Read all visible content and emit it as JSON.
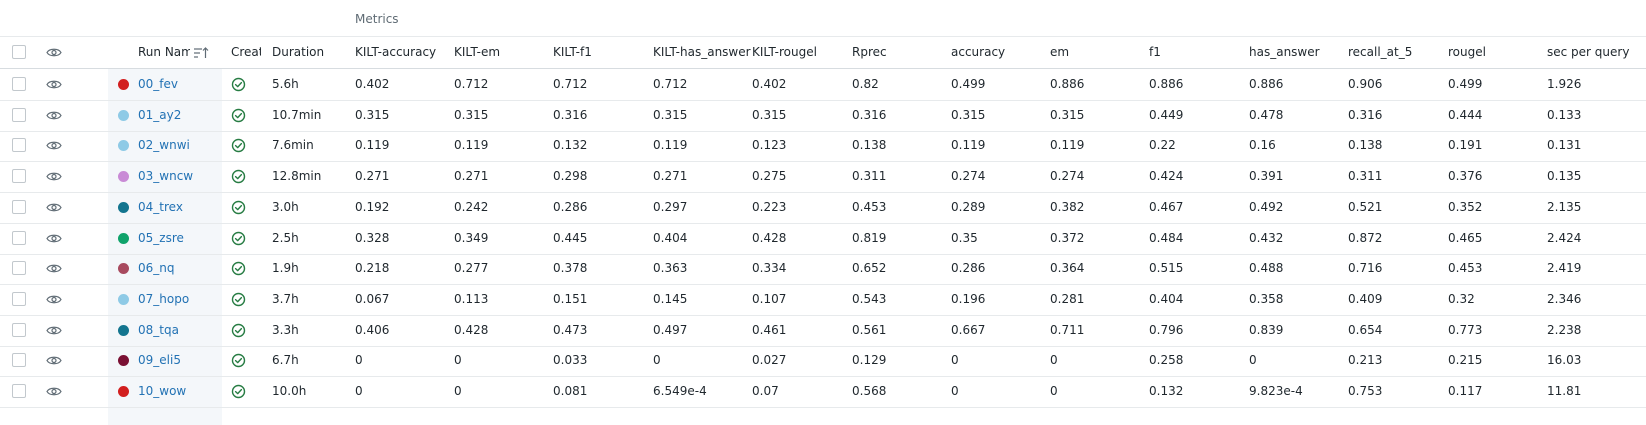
{
  "group_header": {
    "metrics_label": "Metrics"
  },
  "columns": {
    "run_name": "Run Name",
    "created": "Creat",
    "duration": "Duration",
    "metrics": [
      "KILT-accuracy",
      "KILT-em",
      "KILT-f1",
      "KILT-has_answer",
      "KILT-rougel",
      "Rprec",
      "accuracy",
      "em",
      "f1",
      "has_answer",
      "recall_at_5",
      "rougel",
      "sec per query"
    ]
  },
  "icons": {
    "visibility": "eye-icon",
    "status": "check-circle-icon",
    "sort": "sort-ascending-icon"
  },
  "colors": {
    "link": "#2272b4",
    "success": "#277c43"
  },
  "rows": [
    {
      "name": "00_fev",
      "color": "#d21f1f",
      "duration": "5.6h",
      "metrics": [
        "0.402",
        "0.712",
        "0.712",
        "0.712",
        "0.402",
        "0.82",
        "0.499",
        "0.886",
        "0.886",
        "0.886",
        "0.906",
        "0.499",
        "1.926"
      ]
    },
    {
      "name": "01_ay2",
      "color": "#8ecae6",
      "duration": "10.7min",
      "metrics": [
        "0.315",
        "0.315",
        "0.316",
        "0.315",
        "0.315",
        "0.316",
        "0.315",
        "0.315",
        "0.449",
        "0.478",
        "0.316",
        "0.444",
        "0.133"
      ]
    },
    {
      "name": "02_wnwi",
      "color": "#8ecae6",
      "duration": "7.6min",
      "metrics": [
        "0.119",
        "0.119",
        "0.132",
        "0.119",
        "0.123",
        "0.138",
        "0.119",
        "0.119",
        "0.22",
        "0.16",
        "0.138",
        "0.191",
        "0.131"
      ]
    },
    {
      "name": "03_wncw",
      "color": "#c98bd6",
      "duration": "12.8min",
      "metrics": [
        "0.271",
        "0.271",
        "0.298",
        "0.271",
        "0.275",
        "0.311",
        "0.274",
        "0.274",
        "0.424",
        "0.391",
        "0.311",
        "0.376",
        "0.135"
      ]
    },
    {
      "name": "04_trex",
      "color": "#13758f",
      "duration": "3.0h",
      "metrics": [
        "0.192",
        "0.242",
        "0.286",
        "0.297",
        "0.223",
        "0.453",
        "0.289",
        "0.382",
        "0.467",
        "0.492",
        "0.521",
        "0.352",
        "2.135"
      ]
    },
    {
      "name": "05_zsre",
      "color": "#0fa36b",
      "duration": "2.5h",
      "metrics": [
        "0.328",
        "0.349",
        "0.445",
        "0.404",
        "0.428",
        "0.819",
        "0.35",
        "0.372",
        "0.484",
        "0.432",
        "0.872",
        "0.465",
        "2.424"
      ]
    },
    {
      "name": "06_nq",
      "color": "#a84a5f",
      "duration": "1.9h",
      "metrics": [
        "0.218",
        "0.277",
        "0.378",
        "0.363",
        "0.334",
        "0.652",
        "0.286",
        "0.364",
        "0.515",
        "0.488",
        "0.716",
        "0.453",
        "2.419"
      ]
    },
    {
      "name": "07_hopo",
      "color": "#8ecae6",
      "duration": "3.7h",
      "metrics": [
        "0.067",
        "0.113",
        "0.151",
        "0.145",
        "0.107",
        "0.543",
        "0.196",
        "0.281",
        "0.404",
        "0.358",
        "0.409",
        "0.32",
        "2.346"
      ]
    },
    {
      "name": "08_tqa",
      "color": "#13758f",
      "duration": "3.3h",
      "metrics": [
        "0.406",
        "0.428",
        "0.473",
        "0.497",
        "0.461",
        "0.561",
        "0.667",
        "0.711",
        "0.796",
        "0.839",
        "0.654",
        "0.773",
        "2.238"
      ]
    },
    {
      "name": "09_eli5",
      "color": "#7a1033",
      "duration": "6.7h",
      "metrics": [
        "0",
        "0",
        "0.033",
        "0",
        "0.027",
        "0.129",
        "0",
        "0",
        "0.258",
        "0",
        "0.213",
        "0.215",
        "16.03"
      ]
    },
    {
      "name": "10_wow",
      "color": "#d21f1f",
      "duration": "10.0h",
      "metrics": [
        "0",
        "0",
        "0.081",
        "6.549e-4",
        "0.07",
        "0.568",
        "0",
        "0",
        "0.132",
        "9.823e-4",
        "0.753",
        "0.117",
        "11.81"
      ]
    }
  ]
}
